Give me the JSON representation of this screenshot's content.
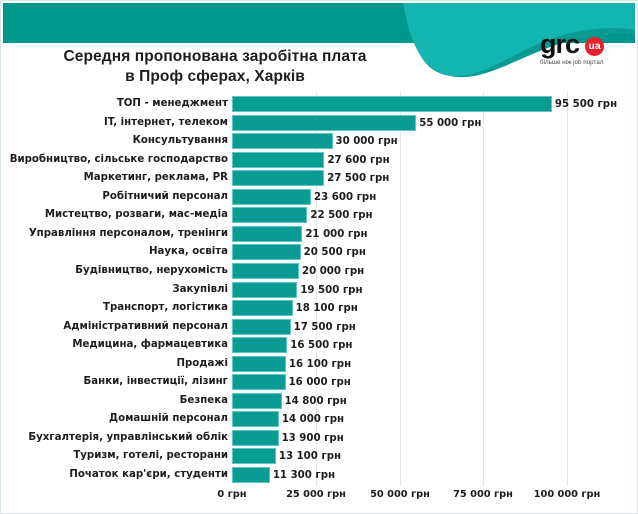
{
  "header": {
    "title_line1": "Середня пропонована заробітна плата",
    "title_line2": "в Проф сферах, Харків",
    "colors": {
      "band": "#009690",
      "wave_light": "#13b5b1",
      "wave_dark": "#0a9b94",
      "bar": "#0a9b94"
    }
  },
  "logo": {
    "brand": "grc",
    "badge": "ua",
    "tagline": "більше ніж job портал",
    "badge_color": "#e5232c"
  },
  "chart_data": {
    "type": "bar",
    "orientation": "horizontal",
    "title": "Середня пропонована заробітна плата в Проф сферах, Харків",
    "xlabel": "",
    "ylabel": "",
    "xlim": [
      0,
      100000
    ],
    "x_ticks": [
      0,
      25000,
      50000,
      75000,
      100000
    ],
    "x_tick_labels": [
      "0 грн",
      "25 000 грн",
      "50 000 грн",
      "75 000 грн",
      "100 000 грн"
    ],
    "grid": true,
    "legend": null,
    "categories": [
      "ТОП - менеджмент",
      "IT, інтернет, телеком",
      "Консультування",
      "Виробництво, сільське господарство",
      "Маркетинг, реклама, PR",
      "Робітничий персонал",
      "Мистецтво, розваги, мас-медіа",
      "Управління персоналом, тренінги",
      "Наука, освіта",
      "Будівництво, нерухомість",
      "Закупівлі",
      "Транспорт, логістика",
      "Адміністративний персонал",
      "Медицина, фармацевтика",
      "Продажі",
      "Банки, інвестиції, лізинг",
      "Безпека",
      "Домашній персонал",
      "Бухгалтерія, управлінський облік",
      "Туризм, готелі, ресторани",
      "Початок кар'єри, студенти"
    ],
    "values": [
      95500,
      55000,
      30000,
      27600,
      27500,
      23600,
      22500,
      21000,
      20500,
      20000,
      19500,
      18100,
      17500,
      16500,
      16100,
      16000,
      14800,
      14000,
      13900,
      13100,
      11300
    ],
    "value_labels": [
      "95 500 грн",
      "55 000 грн",
      "30 000 грн",
      "27 600 грн",
      "27 500 грн",
      "23 600 грн",
      "22 500 грн",
      "21 000 грн",
      "20 500 грн",
      "20 000 грн",
      "19 500 грн",
      "18 100 грн",
      "17 500 грн",
      "16 500 грн",
      "16 100 грн",
      "16 000 грн",
      "14 800 грн",
      "14 000 грн",
      "13 900 грн",
      "13 100 грн",
      "11 300 грн"
    ],
    "unit": "грн"
  }
}
